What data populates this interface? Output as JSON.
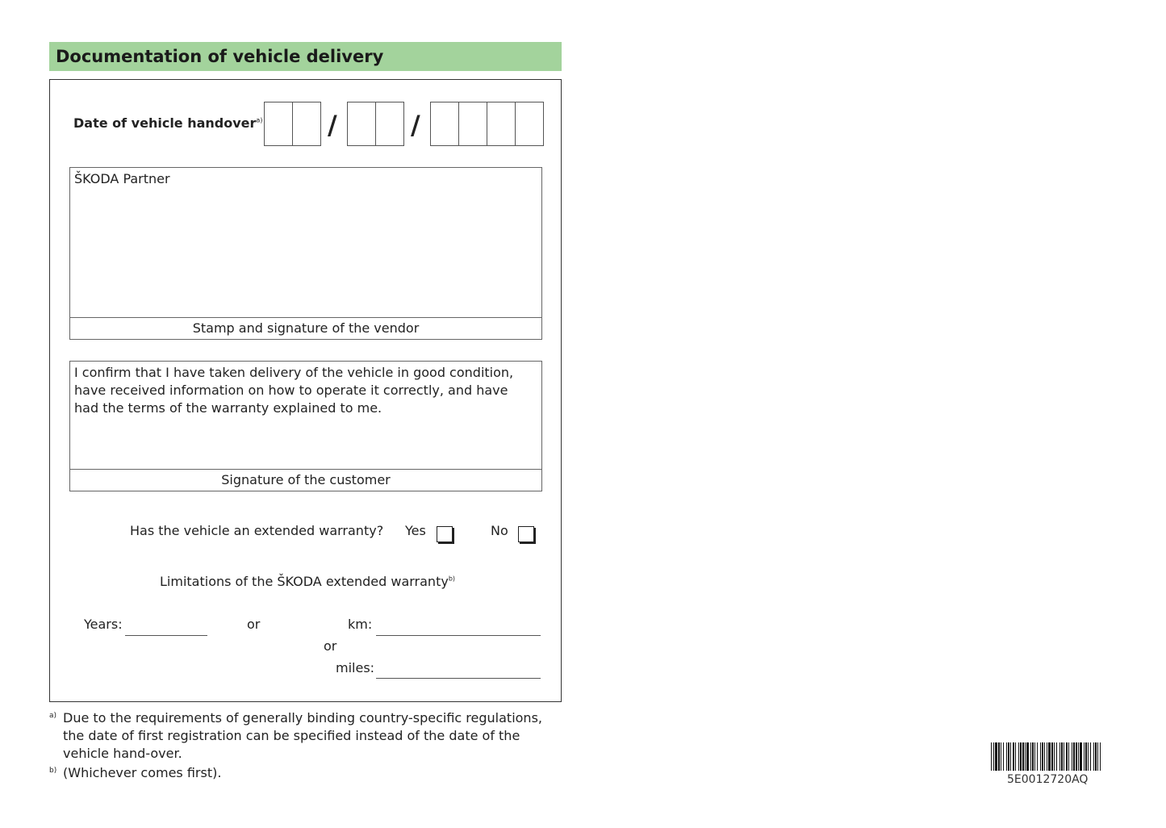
{
  "header": {
    "title": "Documentation of vehicle delivery"
  },
  "date": {
    "label": "Date of vehicle handover",
    "footnote_mark": "a)",
    "separator": "/"
  },
  "vendor_box": {
    "title": "ŠKODA Partner",
    "caption": "Stamp and signature of the vendor"
  },
  "customer_box": {
    "text": "I confirm that I have taken delivery of the vehicle in good condition, have received information on how to operate it correctly, and have had the terms of the warranty explained to me.",
    "caption": "Signature of the customer"
  },
  "warranty": {
    "question": "Has the vehicle an extended warranty?",
    "yes": "Yes",
    "no": "No",
    "limitations": "Limitations of the ŠKODA extended warranty",
    "limitations_mark": "b)",
    "years": "Years:",
    "or1": "or",
    "km": "km:",
    "or2": "or",
    "miles": "miles:"
  },
  "footnotes": [
    {
      "mark": "a)",
      "text": "Due to the requirements of generally binding country-specific regulations, the date of first registration can be specified instead of the date of the vehicle hand-over."
    },
    {
      "mark": "b)",
      "text": "(Whichever comes first)."
    }
  ],
  "barcode": {
    "code": "5E0012720AQ"
  },
  "colors": {
    "header_bg": "#a3d39c"
  }
}
